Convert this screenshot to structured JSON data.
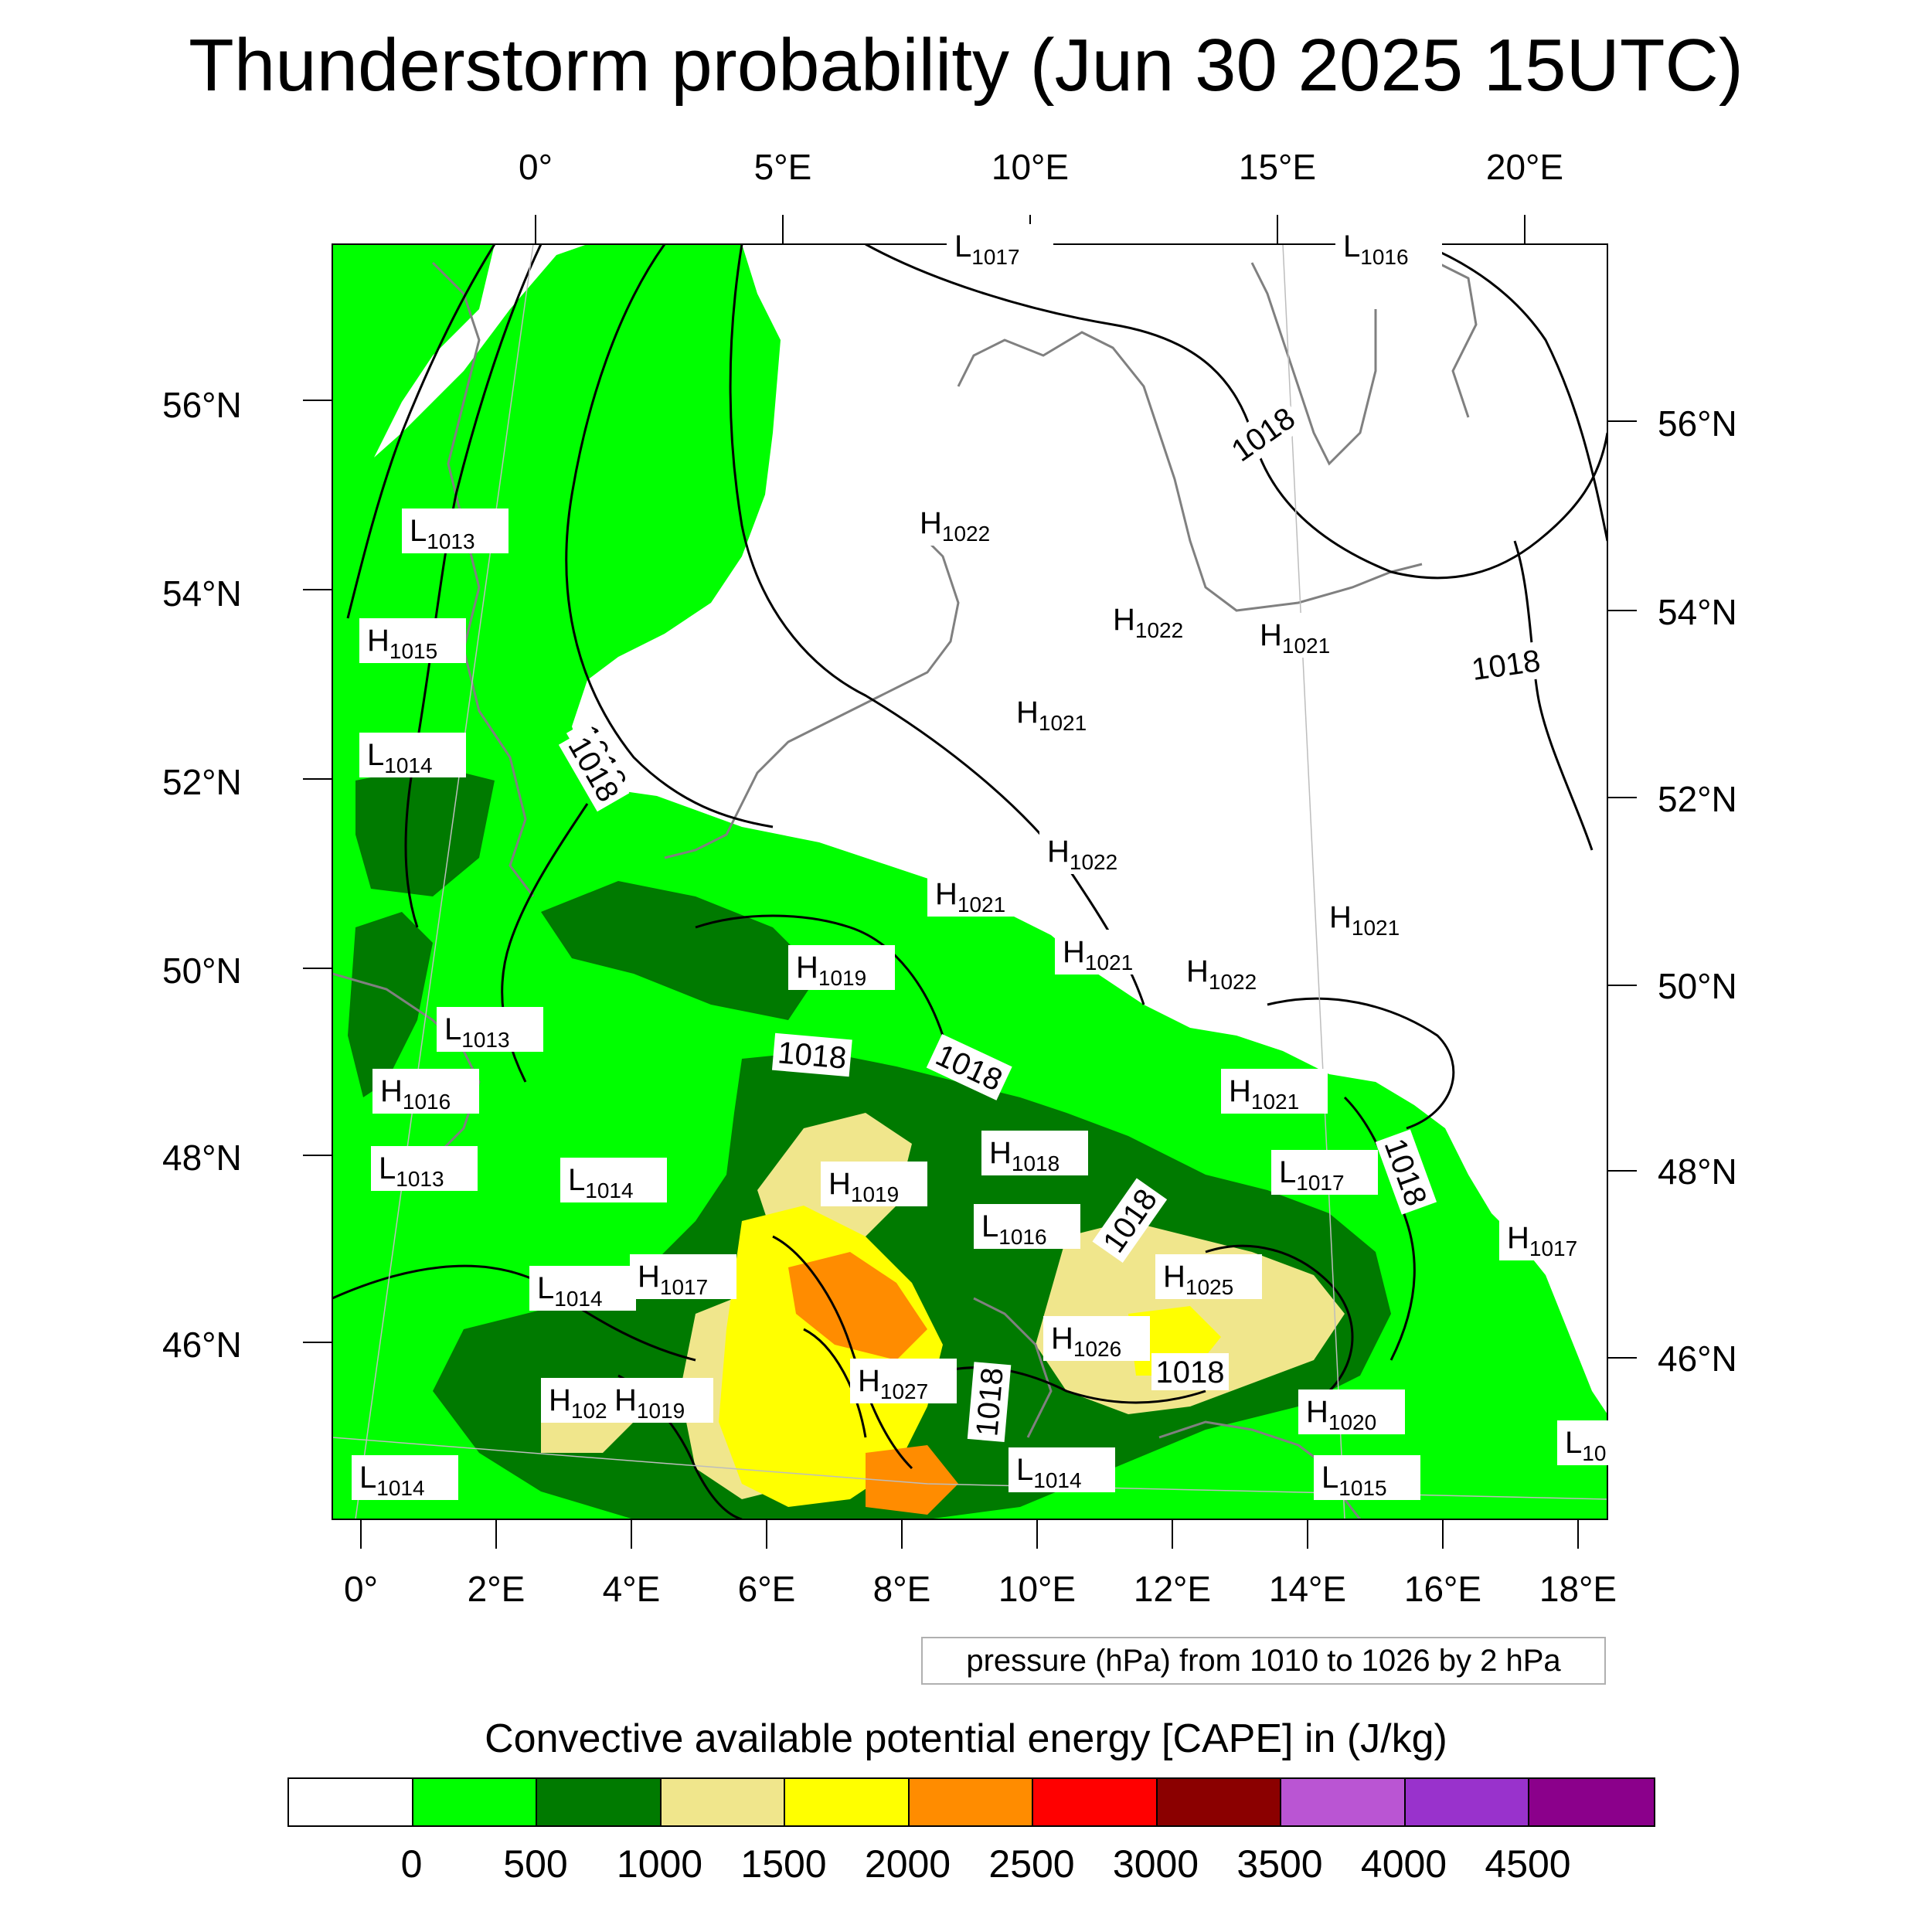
{
  "title": "Thunderstorm probability (Jun 30 2025 15UTC)",
  "axes": {
    "top_lon_labels": [
      "0°",
      "5°E",
      "10°E",
      "15°E",
      "20°E"
    ],
    "bottom_lon_labels": [
      "0°",
      "2°E",
      "4°E",
      "6°E",
      "8°E",
      "10°E",
      "12°E",
      "14°E",
      "16°E",
      "18°E"
    ],
    "left_lat_labels": [
      "56°N",
      "54°N",
      "52°N",
      "50°N",
      "48°N",
      "46°N"
    ],
    "right_lat_labels": [
      "56°N",
      "54°N",
      "52°N",
      "50°N",
      "48°N",
      "46°N"
    ]
  },
  "pressure_note": "pressure (hPa) from 1010 to 1026 by 2 hPa",
  "colorbar": {
    "title": "Convective available potential energy [CAPE] in (J/kg)",
    "colors": [
      "#ffffff",
      "#00ff00",
      "#007a00",
      "#f0e68c",
      "#ffff00",
      "#ff8c00",
      "#ff0000",
      "#8b0000",
      "#ba55d3",
      "#9932cc",
      "#8b008b"
    ],
    "labels": [
      "0",
      "500",
      "1000",
      "1500",
      "2000",
      "2500",
      "3000",
      "3500",
      "4000",
      "4500"
    ]
  },
  "pressure_labels": [
    {
      "type": "L",
      "value": "1017"
    },
    {
      "type": "L",
      "value": "1016"
    },
    {
      "type": "L",
      "value": "1013"
    },
    {
      "type": "H",
      "value": "1015"
    },
    {
      "type": "L",
      "value": "1014"
    },
    {
      "type": "H",
      "value": "1022"
    },
    {
      "type": "H",
      "value": "1022"
    },
    {
      "type": "H",
      "value": "1021"
    },
    {
      "type": "H",
      "value": "1021"
    },
    {
      "type": "H",
      "value": "1022"
    },
    {
      "type": "H",
      "value": "1021"
    },
    {
      "type": "H",
      "value": "1021"
    },
    {
      "type": "H",
      "value": "1022"
    },
    {
      "type": "H",
      "value": "1021"
    },
    {
      "type": "H",
      "value": "1019"
    },
    {
      "type": "L",
      "value": "1013"
    },
    {
      "type": "H",
      "value": "1016"
    },
    {
      "type": "L",
      "value": "1013"
    },
    {
      "type": "L",
      "value": "1014"
    },
    {
      "type": "H",
      "value": "1021"
    },
    {
      "type": "H",
      "value": "1018"
    },
    {
      "type": "L",
      "value": "1017"
    },
    {
      "type": "H",
      "value": "1019"
    },
    {
      "type": "L",
      "value": "1016"
    },
    {
      "type": "H",
      "value": "1017"
    },
    {
      "type": "H",
      "value": "1017"
    },
    {
      "type": "L",
      "value": "1014"
    },
    {
      "type": "H",
      "value": "1025"
    },
    {
      "type": "H",
      "value": "1026"
    },
    {
      "type": "H",
      "value": "1027"
    },
    {
      "type": "H",
      "value": "102"
    },
    {
      "type": "H",
      "value": "1019"
    },
    {
      "type": "H",
      "value": "1020"
    },
    {
      "type": "L",
      "value": "1014"
    },
    {
      "type": "L",
      "value": "1014"
    },
    {
      "type": "L",
      "value": "1015"
    },
    {
      "type": "L",
      "value": "10"
    }
  ],
  "isobar_labels": [
    "1018",
    "1018",
    "1018",
    "1018",
    "1018",
    "1018",
    "1018",
    "1018",
    "1018",
    "1018"
  ]
}
